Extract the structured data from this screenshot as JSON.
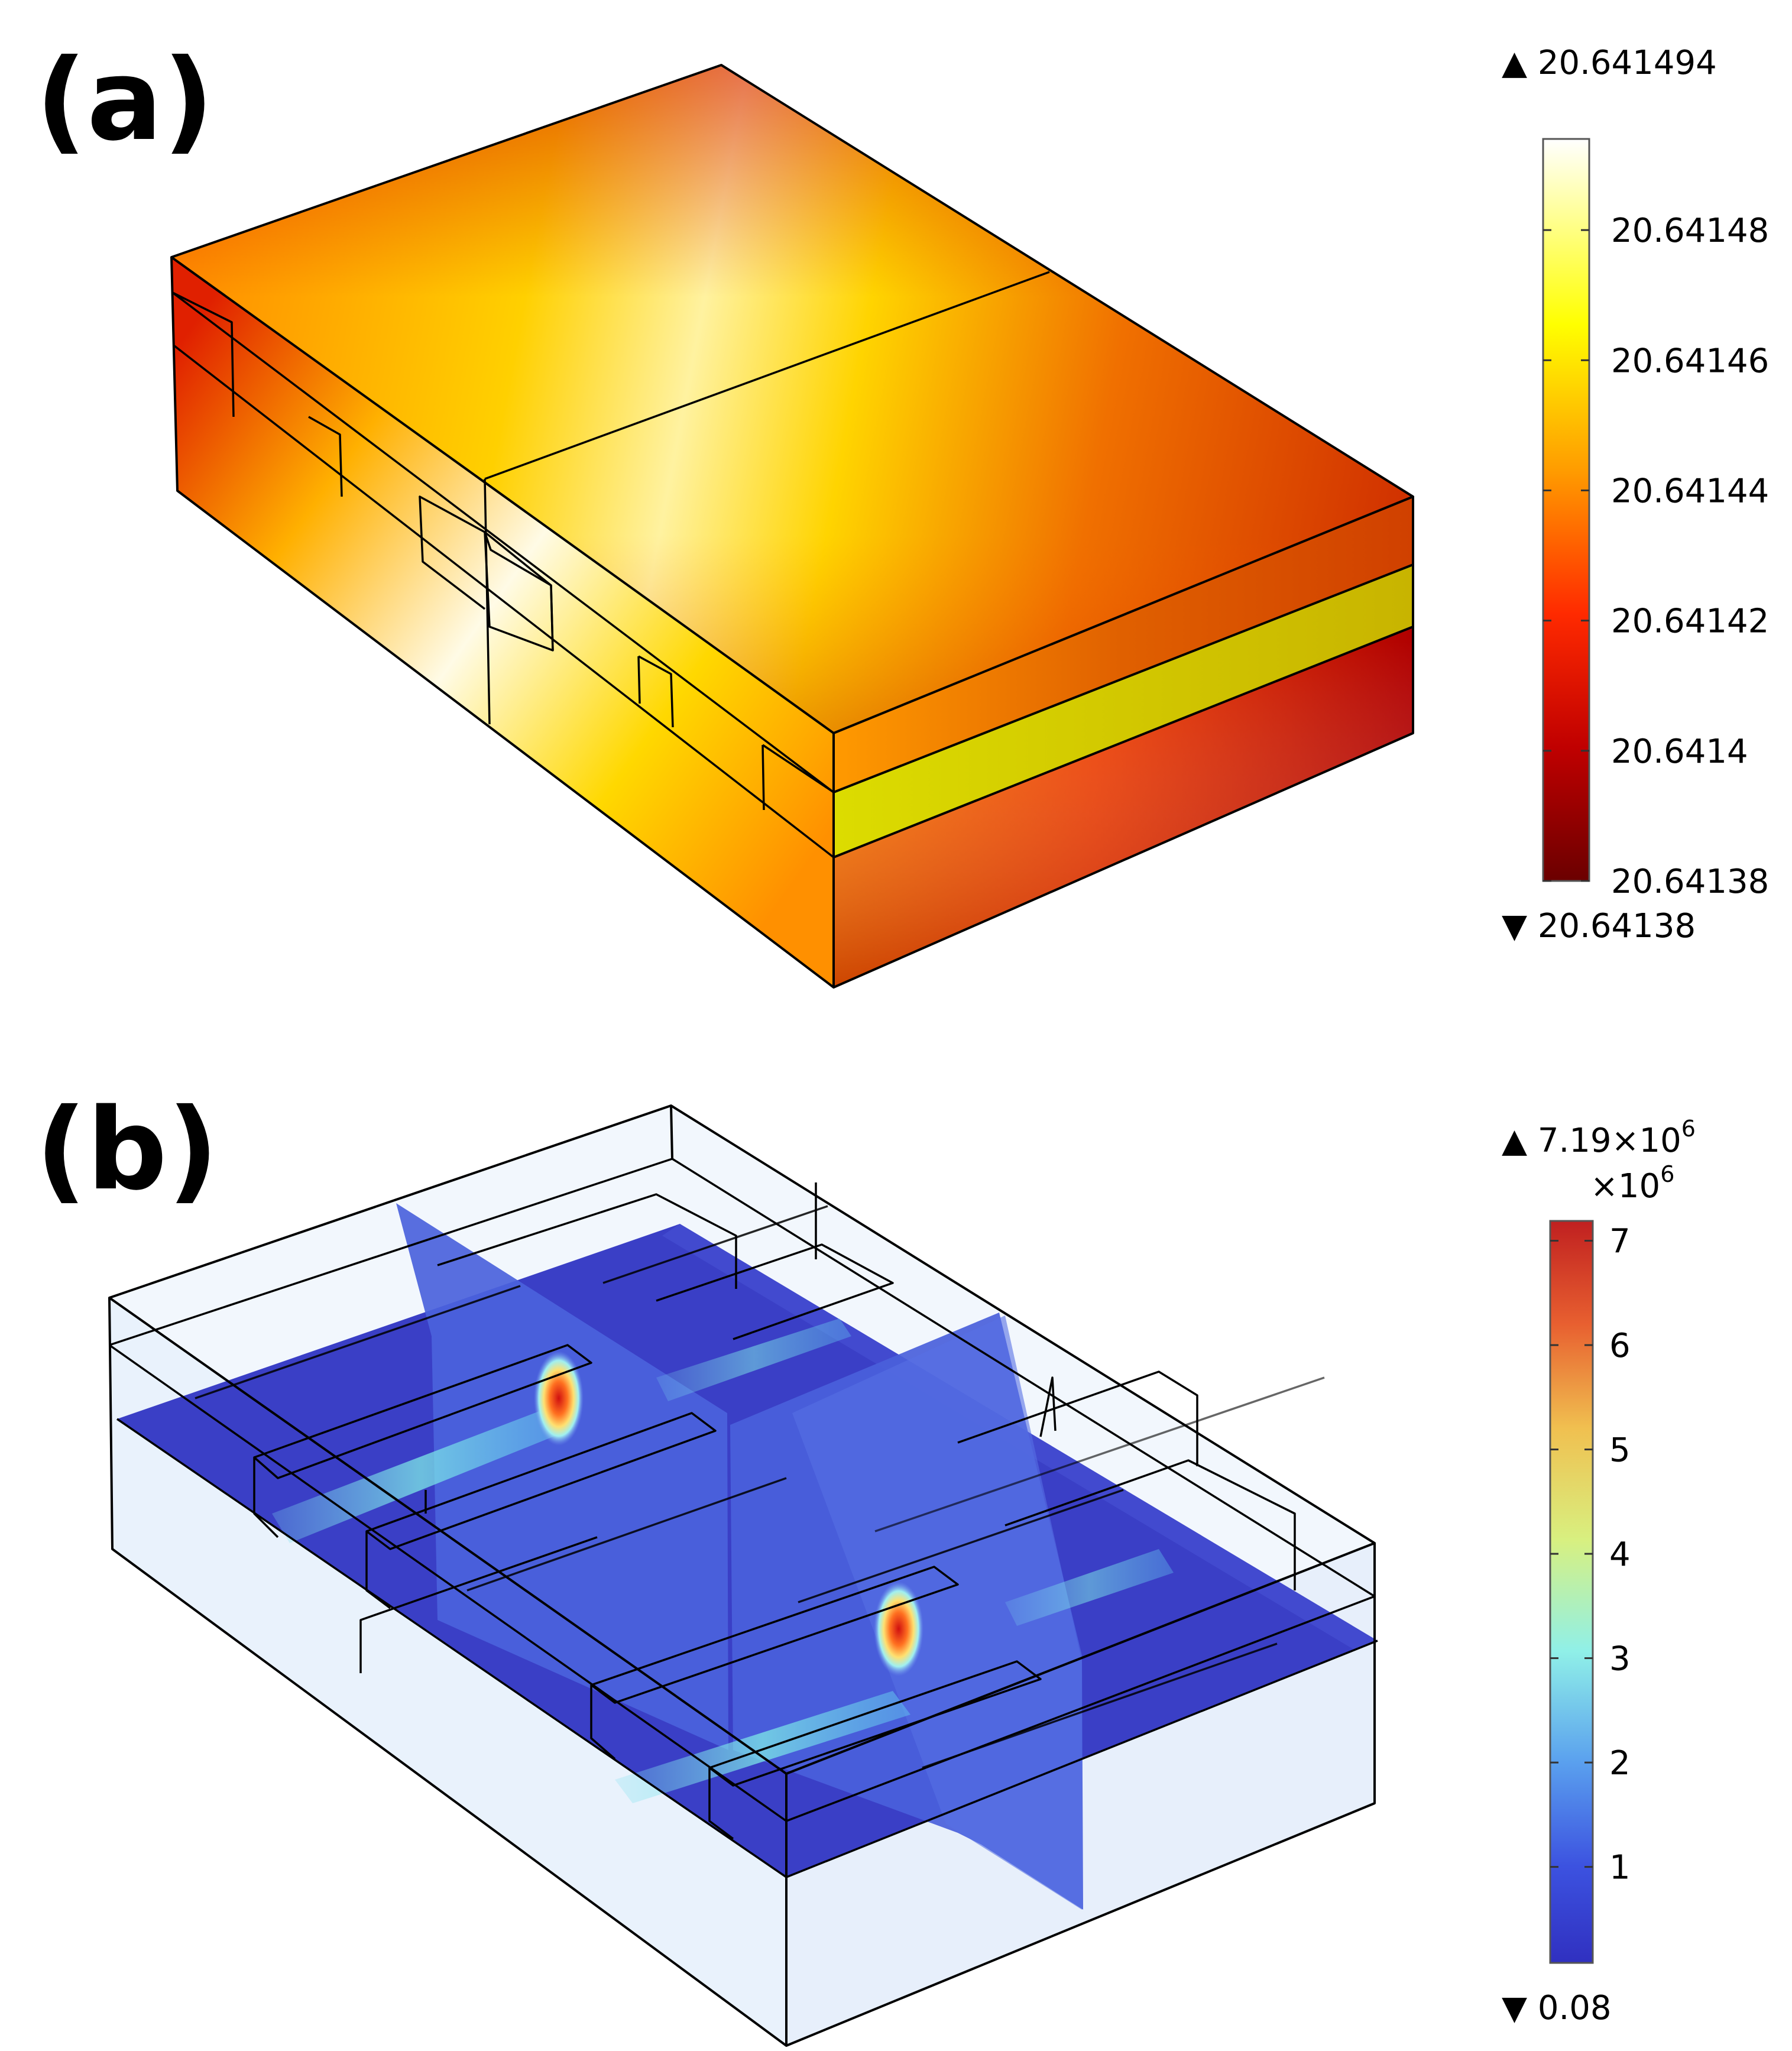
{
  "panel_a": {
    "label": "(a)",
    "colorbar": {
      "max_label": "▲ 20.641494",
      "min_label": "▼ 20.64138",
      "scale": "heat (dark red → red → orange → yellow → white)",
      "ticks": [
        {
          "value": 20.64148,
          "label": "20.64148"
        },
        {
          "value": 20.64146,
          "label": "20.64146"
        },
        {
          "value": 20.64144,
          "label": "20.64144"
        },
        {
          "value": 20.64142,
          "label": "20.64142"
        },
        {
          "value": 20.6414,
          "label": "20.6414"
        },
        {
          "value": 20.64138,
          "label": "20.64138"
        }
      ],
      "range": [
        20.64138,
        20.641494
      ],
      "colors": [
        "#6b0000",
        "#c00000",
        "#ff2a00",
        "#ff9a00",
        "#ffff00",
        "#ffffff"
      ]
    }
  },
  "panel_b": {
    "label": "(b)",
    "colorbar": {
      "max_label": "▲ 7.19×10",
      "max_exp": "6",
      "multiplier_label": "×10",
      "multiplier_exp": "6",
      "min_label": "▼ 0.08",
      "scale": "rainbow (blue → cyan → yellow → red)",
      "ticks": [
        {
          "value": 7,
          "label": "7"
        },
        {
          "value": 6,
          "label": "6"
        },
        {
          "value": 5,
          "label": "5"
        },
        {
          "value": 4,
          "label": "4"
        },
        {
          "value": 3,
          "label": "3"
        },
        {
          "value": 2,
          "label": "2"
        },
        {
          "value": 1,
          "label": "1"
        }
      ],
      "range": [
        0.08,
        7.19
      ],
      "colors": [
        "#3030c0",
        "#4060e0",
        "#70c0f0",
        "#90f0e0",
        "#e0f070",
        "#f0a040",
        "#c02020"
      ]
    }
  }
}
